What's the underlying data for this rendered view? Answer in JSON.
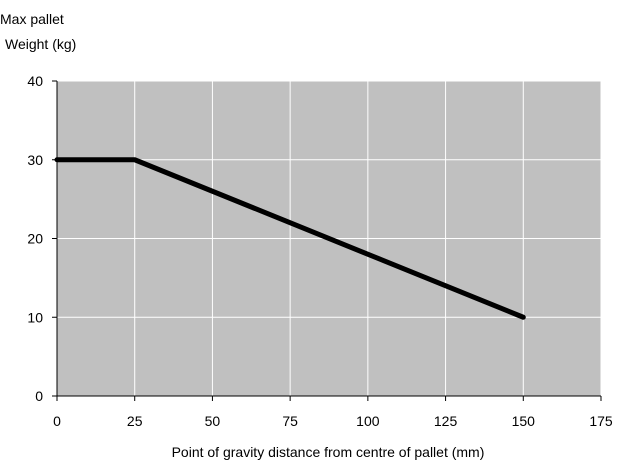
{
  "chart_data": {
    "type": "line",
    "title": "",
    "xlabel": "Point of gravity distance from centre of pallet (mm)",
    "ylabel_lines": [
      "Max pallet",
      "Weight (kg)"
    ],
    "xlim": [
      0,
      175
    ],
    "ylim": [
      0,
      40
    ],
    "x_ticks": [
      0,
      25,
      50,
      75,
      100,
      125,
      150,
      175
    ],
    "y_ticks": [
      0,
      10,
      20,
      30,
      40
    ],
    "grid": true,
    "legend": "none",
    "series": [
      {
        "x": [
          0,
          25,
          150
        ],
        "values": [
          30,
          30,
          10
        ]
      }
    ],
    "colors": {
      "plot_background": "#c0c0c0",
      "grid": "#ffffff",
      "axis": "#000000",
      "line": "#000000"
    }
  }
}
